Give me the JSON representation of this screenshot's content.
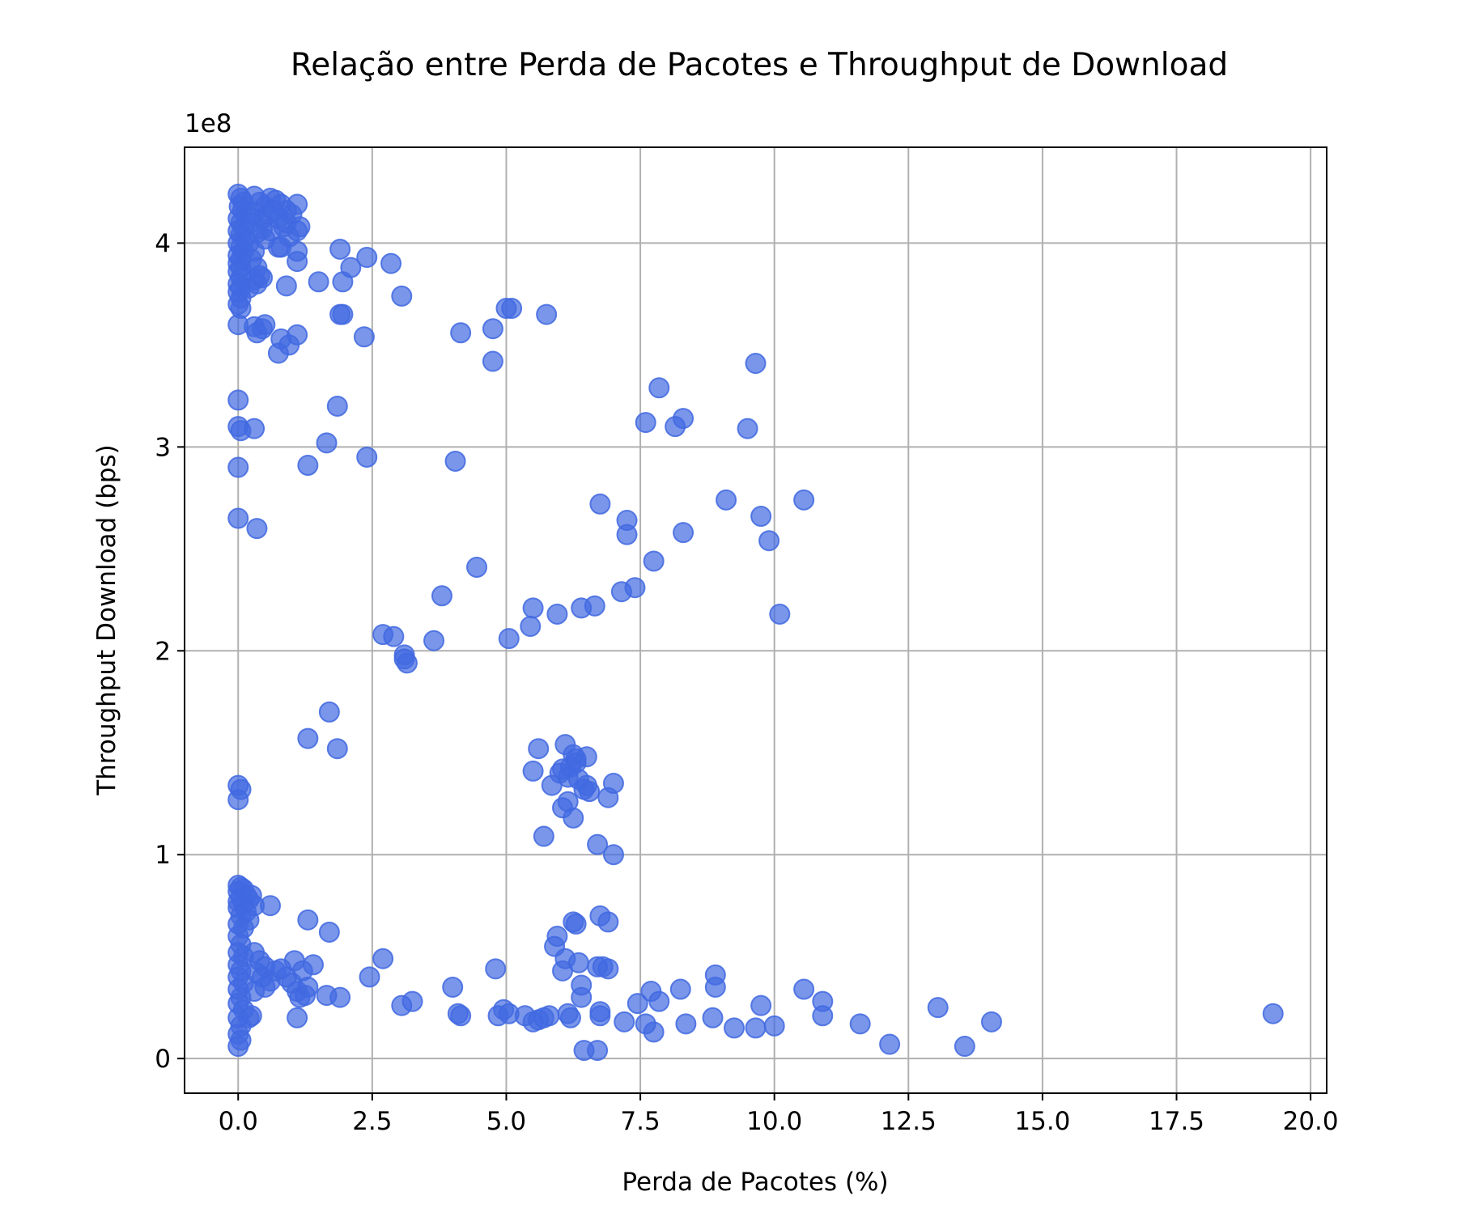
{
  "chart_data": {
    "type": "scatter",
    "title": "Relação entre Perda de Pacotes e Throughput de Download",
    "xlabel": "Perda de Pacotes (%)",
    "ylabel": "Throughput Download (bps)",
    "y_multiplier": "1e8",
    "xlim": [
      -1.0,
      20.3
    ],
    "ylim": [
      -0.17,
      4.47
    ],
    "x_ticks": [
      0.0,
      2.5,
      5.0,
      7.5,
      10.0,
      12.5,
      15.0,
      17.5,
      20.0
    ],
    "x_tick_labels": [
      "0.0",
      "2.5",
      "5.0",
      "7.5",
      "10.0",
      "12.5",
      "15.0",
      "17.5",
      "20.0"
    ],
    "y_ticks": [
      0,
      1,
      2,
      3,
      4
    ],
    "y_tick_labels": [
      "0",
      "1",
      "2",
      "3",
      "4"
    ],
    "grid": true,
    "point_color": "#4169e1",
    "points": [
      [
        0.0,
        4.24
      ],
      [
        0.05,
        4.22
      ],
      [
        0.1,
        4.2
      ],
      [
        0.02,
        4.18
      ],
      [
        0.08,
        4.16
      ],
      [
        0.15,
        4.14
      ],
      [
        0.0,
        4.12
      ],
      [
        0.05,
        4.1
      ],
      [
        0.1,
        4.08
      ],
      [
        0.0,
        4.06
      ],
      [
        0.05,
        4.04
      ],
      [
        0.12,
        4.02
      ],
      [
        0.0,
        4.0
      ],
      [
        0.05,
        3.98
      ],
      [
        0.1,
        3.96
      ],
      [
        0.0,
        3.94
      ],
      [
        0.05,
        3.92
      ],
      [
        0.0,
        3.9
      ],
      [
        0.05,
        3.88
      ],
      [
        0.0,
        3.86
      ],
      [
        0.05,
        3.83
      ],
      [
        0.0,
        3.8
      ],
      [
        0.05,
        3.78
      ],
      [
        0.0,
        3.76
      ],
      [
        0.05,
        3.73
      ],
      [
        0.0,
        3.7
      ],
      [
        0.05,
        3.68
      ],
      [
        0.0,
        3.6
      ],
      [
        0.3,
        4.23
      ],
      [
        0.4,
        4.2
      ],
      [
        0.5,
        4.18
      ],
      [
        0.6,
        4.22
      ],
      [
        0.3,
        4.15
      ],
      [
        0.45,
        4.12
      ],
      [
        0.25,
        4.1
      ],
      [
        0.35,
        4.05
      ],
      [
        0.2,
        4.0
      ],
      [
        0.3,
        3.96
      ],
      [
        0.25,
        3.92
      ],
      [
        0.35,
        3.88
      ],
      [
        0.3,
        3.82
      ],
      [
        0.2,
        3.78
      ],
      [
        0.35,
        3.8
      ],
      [
        0.45,
        3.83
      ],
      [
        0.7,
        4.21
      ],
      [
        0.8,
        4.19
      ],
      [
        0.9,
        4.16
      ],
      [
        1.0,
        4.14
      ],
      [
        0.75,
        4.12
      ],
      [
        0.85,
        4.08
      ],
      [
        0.6,
        4.06
      ],
      [
        0.9,
        4.1
      ],
      [
        1.1,
        4.19
      ],
      [
        1.15,
        4.08
      ],
      [
        1.1,
        4.06
      ],
      [
        0.95,
        4.03
      ],
      [
        0.75,
        3.98
      ],
      [
        0.8,
        3.98
      ],
      [
        1.1,
        3.96
      ],
      [
        1.1,
        3.91
      ],
      [
        0.45,
        4.07
      ],
      [
        0.55,
        4.14
      ],
      [
        0.65,
        4.16
      ],
      [
        0.5,
        4.02
      ],
      [
        0.3,
        3.59
      ],
      [
        0.35,
        3.56
      ],
      [
        0.45,
        3.58
      ],
      [
        0.5,
        3.6
      ],
      [
        0.8,
        3.53
      ],
      [
        0.75,
        3.46
      ],
      [
        0.95,
        3.5
      ],
      [
        1.1,
        3.55
      ],
      [
        0.9,
        3.79
      ],
      [
        0.4,
        3.84
      ],
      [
        1.5,
        3.81
      ],
      [
        1.9,
        3.97
      ],
      [
        2.1,
        3.88
      ],
      [
        1.95,
        3.81
      ],
      [
        2.4,
        3.93
      ],
      [
        2.85,
        3.9
      ],
      [
        3.05,
        3.74
      ],
      [
        1.9,
        3.65
      ],
      [
        1.95,
        3.65
      ],
      [
        2.35,
        3.54
      ],
      [
        4.15,
        3.56
      ],
      [
        4.75,
        3.58
      ],
      [
        5.0,
        3.68
      ],
      [
        5.1,
        3.68
      ],
      [
        5.75,
        3.65
      ],
      [
        4.75,
        3.42
      ],
      [
        0.0,
        3.23
      ],
      [
        0.0,
        3.1
      ],
      [
        0.05,
        3.08
      ],
      [
        0.3,
        3.09
      ],
      [
        0.0,
        2.9
      ],
      [
        0.0,
        2.65
      ],
      [
        0.35,
        2.6
      ],
      [
        1.65,
        3.02
      ],
      [
        1.85,
        3.2
      ],
      [
        1.3,
        2.91
      ],
      [
        2.4,
        2.95
      ],
      [
        4.05,
        2.93
      ],
      [
        7.85,
        3.29
      ],
      [
        7.6,
        3.12
      ],
      [
        8.15,
        3.1
      ],
      [
        8.3,
        3.14
      ],
      [
        9.65,
        3.41
      ],
      [
        9.5,
        3.09
      ],
      [
        6.75,
        2.72
      ],
      [
        7.25,
        2.64
      ],
      [
        7.25,
        2.57
      ],
      [
        8.3,
        2.58
      ],
      [
        9.1,
        2.74
      ],
      [
        9.75,
        2.66
      ],
      [
        9.9,
        2.54
      ],
      [
        10.55,
        2.74
      ],
      [
        7.75,
        2.44
      ],
      [
        7.4,
        2.31
      ],
      [
        7.15,
        2.29
      ],
      [
        6.65,
        2.22
      ],
      [
        6.4,
        2.21
      ],
      [
        5.95,
        2.18
      ],
      [
        5.5,
        2.21
      ],
      [
        5.45,
        2.12
      ],
      [
        5.05,
        2.06
      ],
      [
        4.45,
        2.41
      ],
      [
        3.8,
        2.27
      ],
      [
        3.65,
        2.05
      ],
      [
        2.7,
        2.08
      ],
      [
        2.9,
        2.07
      ],
      [
        3.1,
        1.98
      ],
      [
        3.15,
        1.94
      ],
      [
        3.1,
        1.96
      ],
      [
        10.1,
        2.18
      ],
      [
        1.7,
        1.7
      ],
      [
        1.3,
        1.57
      ],
      [
        1.85,
        1.52
      ],
      [
        0.0,
        1.34
      ],
      [
        0.05,
        1.32
      ],
      [
        0.0,
        1.27
      ],
      [
        5.6,
        1.52
      ],
      [
        6.1,
        1.54
      ],
      [
        6.25,
        1.49
      ],
      [
        6.5,
        1.48
      ],
      [
        5.5,
        1.41
      ],
      [
        6.0,
        1.4
      ],
      [
        6.05,
        1.42
      ],
      [
        6.2,
        1.43
      ],
      [
        6.3,
        1.47
      ],
      [
        6.3,
        1.45
      ],
      [
        6.15,
        1.38
      ],
      [
        6.35,
        1.37
      ],
      [
        5.85,
        1.34
      ],
      [
        6.5,
        1.34
      ],
      [
        6.55,
        1.31
      ],
      [
        6.45,
        1.32
      ],
      [
        6.15,
        1.26
      ],
      [
        6.05,
        1.23
      ],
      [
        6.25,
        1.18
      ],
      [
        6.9,
        1.28
      ],
      [
        7.0,
        1.35
      ],
      [
        5.7,
        1.09
      ],
      [
        6.7,
        1.05
      ],
      [
        7.0,
        1.0
      ],
      [
        0.0,
        0.85
      ],
      [
        0.05,
        0.84
      ],
      [
        0.1,
        0.83
      ],
      [
        0.0,
        0.82
      ],
      [
        0.15,
        0.8
      ],
      [
        0.05,
        0.79
      ],
      [
        0.2,
        0.78
      ],
      [
        0.0,
        0.77
      ],
      [
        0.1,
        0.76
      ],
      [
        0.25,
        0.8
      ],
      [
        0.3,
        0.75
      ],
      [
        0.0,
        0.74
      ],
      [
        0.15,
        0.72
      ],
      [
        0.05,
        0.7
      ],
      [
        0.2,
        0.68
      ],
      [
        0.0,
        0.66
      ],
      [
        0.1,
        0.64
      ],
      [
        0.0,
        0.6
      ],
      [
        0.05,
        0.56
      ],
      [
        0.0,
        0.52
      ],
      [
        0.1,
        0.5
      ],
      [
        0.0,
        0.46
      ],
      [
        0.05,
        0.43
      ],
      [
        0.0,
        0.4
      ],
      [
        0.1,
        0.37
      ],
      [
        0.0,
        0.34
      ],
      [
        0.05,
        0.3
      ],
      [
        0.0,
        0.27
      ],
      [
        0.1,
        0.24
      ],
      [
        0.0,
        0.2
      ],
      [
        0.05,
        0.16
      ],
      [
        0.0,
        0.12
      ],
      [
        0.05,
        0.09
      ],
      [
        0.0,
        0.06
      ],
      [
        0.3,
        0.52
      ],
      [
        0.4,
        0.48
      ],
      [
        0.5,
        0.45
      ],
      [
        0.35,
        0.42
      ],
      [
        0.45,
        0.4
      ],
      [
        0.6,
        0.38
      ],
      [
        0.5,
        0.35
      ],
      [
        0.3,
        0.33
      ],
      [
        0.7,
        0.43
      ],
      [
        0.8,
        0.44
      ],
      [
        0.9,
        0.4
      ],
      [
        1.0,
        0.37
      ],
      [
        1.05,
        0.48
      ],
      [
        1.1,
        0.33
      ],
      [
        1.15,
        0.3
      ],
      [
        1.2,
        0.43
      ],
      [
        1.25,
        0.31
      ],
      [
        1.3,
        0.35
      ],
      [
        1.4,
        0.46
      ],
      [
        1.65,
        0.31
      ],
      [
        1.9,
        0.3
      ],
      [
        0.6,
        0.75
      ],
      [
        1.3,
        0.68
      ],
      [
        1.7,
        0.62
      ],
      [
        1.1,
        0.2
      ],
      [
        0.2,
        0.2
      ],
      [
        0.25,
        0.21
      ],
      [
        2.45,
        0.4
      ],
      [
        2.7,
        0.49
      ],
      [
        3.05,
        0.26
      ],
      [
        3.25,
        0.28
      ],
      [
        4.0,
        0.35
      ],
      [
        4.1,
        0.22
      ],
      [
        4.15,
        0.21
      ],
      [
        4.8,
        0.44
      ],
      [
        4.85,
        0.21
      ],
      [
        4.95,
        0.24
      ],
      [
        5.05,
        0.22
      ],
      [
        5.35,
        0.21
      ],
      [
        5.5,
        0.18
      ],
      [
        5.6,
        0.19
      ],
      [
        5.7,
        0.2
      ],
      [
        5.8,
        0.21
      ],
      [
        5.9,
        0.55
      ],
      [
        5.95,
        0.6
      ],
      [
        6.05,
        0.43
      ],
      [
        6.1,
        0.49
      ],
      [
        6.15,
        0.22
      ],
      [
        6.2,
        0.2
      ],
      [
        6.25,
        0.67
      ],
      [
        6.3,
        0.66
      ],
      [
        6.35,
        0.47
      ],
      [
        6.4,
        0.36
      ],
      [
        6.4,
        0.3
      ],
      [
        6.45,
        0.04
      ],
      [
        6.7,
        0.45
      ],
      [
        6.75,
        0.7
      ],
      [
        6.75,
        0.21
      ],
      [
        6.75,
        0.23
      ],
      [
        6.8,
        0.45
      ],
      [
        6.9,
        0.44
      ],
      [
        6.9,
        0.67
      ],
      [
        6.7,
        0.04
      ],
      [
        7.2,
        0.18
      ],
      [
        7.45,
        0.27
      ],
      [
        7.7,
        0.33
      ],
      [
        7.75,
        0.13
      ],
      [
        7.85,
        0.28
      ],
      [
        7.6,
        0.17
      ],
      [
        8.25,
        0.34
      ],
      [
        8.35,
        0.17
      ],
      [
        8.85,
        0.2
      ],
      [
        8.9,
        0.41
      ],
      [
        8.9,
        0.35
      ],
      [
        9.25,
        0.15
      ],
      [
        9.65,
        0.15
      ],
      [
        9.75,
        0.26
      ],
      [
        10.0,
        0.16
      ],
      [
        10.55,
        0.34
      ],
      [
        10.9,
        0.28
      ],
      [
        10.9,
        0.21
      ],
      [
        11.6,
        0.17
      ],
      [
        12.15,
        0.07
      ],
      [
        13.05,
        0.25
      ],
      [
        13.55,
        0.06
      ],
      [
        14.05,
        0.18
      ],
      [
        19.3,
        0.22
      ]
    ]
  }
}
